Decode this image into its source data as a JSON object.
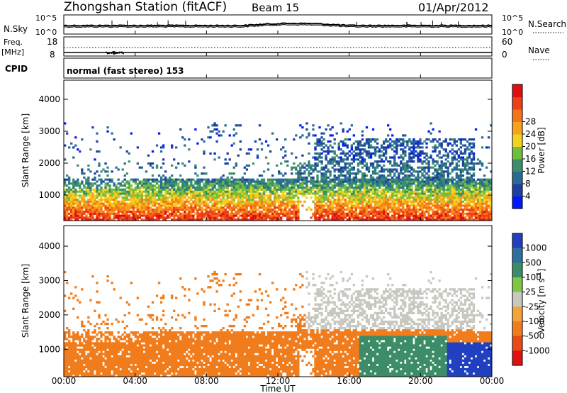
{
  "header": {
    "station": "Zhongshan Station (fitACF)",
    "beam": "Beam 15",
    "date": "01/Apr/2012"
  },
  "top_panels": {
    "nsky_label": "N.Sky",
    "nsearch_label": "N.Search",
    "nsky_ticks": [
      "10^5",
      "10^0"
    ],
    "nsearch_ticks": [
      "10^5",
      "10^0"
    ],
    "freq_label_1": "Freq.",
    "freq_label_2": "[MHz]",
    "freq_ticks": [
      "18",
      "8"
    ],
    "nave_label": "Nave",
    "nave_ticks": [
      "60",
      "0"
    ],
    "cpid_label": "CPID",
    "cpid_text": "normal (fast stereo) 153"
  },
  "chart_data": [
    {
      "type": "heatmap",
      "name": "power",
      "ylabel": "Slant Range [km]",
      "xlabel": "",
      "ylim": [
        200,
        4600
      ],
      "yticks": [
        "1000",
        "2000",
        "3000",
        "4000"
      ],
      "colorbar": {
        "label": "Power [dB]",
        "ticks": [
          "4",
          "8",
          "12",
          "16",
          "20",
          "24",
          "28"
        ],
        "colors": [
          "#0018ff",
          "#1d3fa0",
          "#2a6a94",
          "#3a8f6a",
          "#6fbf3f",
          "#f2d21e",
          "#f7a21b",
          "#f5731b",
          "#ee3f17",
          "#e00f0f"
        ],
        "range": [
          0,
          30
        ]
      }
    },
    {
      "type": "heatmap",
      "name": "velocity",
      "ylabel": "Slant Range [km]",
      "xlabel": "Time UT",
      "ylim": [
        200,
        4600
      ],
      "yticks": [
        "1000",
        "2000",
        "3000",
        "4000"
      ],
      "xticks": [
        "00:00",
        "04:00",
        "08:00",
        "12:00",
        "16:00",
        "20:00",
        "00:00"
      ],
      "colorbar": {
        "label": "Velocity [m s^-1]",
        "ticks": [
          "1000",
          "500",
          "100",
          "25",
          "-25",
          "-100",
          "-500",
          "-1000"
        ],
        "colors": [
          "#2040c0",
          "#2f6fa0",
          "#3c8c68",
          "#7cc843",
          "#c8c8c0",
          "#f2a43a",
          "#f07c1c",
          "#e84a14",
          "#e01010"
        ]
      }
    }
  ],
  "x_axis": {
    "label": "Time UT",
    "ticks": [
      "00:00",
      "04:00",
      "08:00",
      "12:00",
      "16:00",
      "20:00",
      "00:00"
    ]
  }
}
